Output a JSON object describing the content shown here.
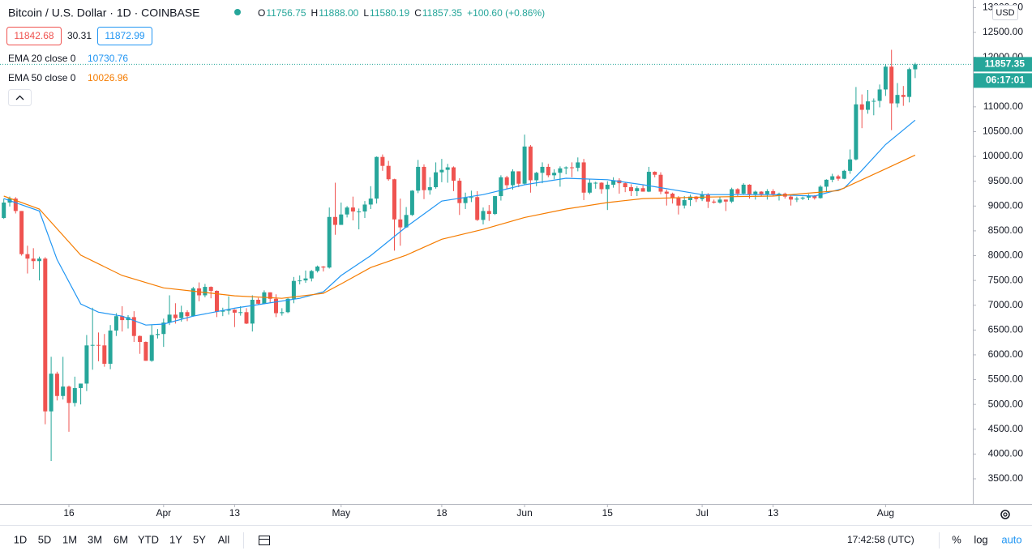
{
  "header": {
    "title": "Bitcoin / U.S. Dollar · 1D · COINBASE",
    "ohlc": [
      {
        "label": "O",
        "value": "11756.75"
      },
      {
        "label": "H",
        "value": "11888.00"
      },
      {
        "label": "L",
        "value": "11580.19"
      },
      {
        "label": "C",
        "value": "11857.35"
      }
    ],
    "change": "+100.60 (+0.86%)",
    "bid": "11842.68",
    "spread": "30.31",
    "ask": "11872.99"
  },
  "footer": {
    "ranges": [
      "1D",
      "5D",
      "1M",
      "3M",
      "6M",
      "YTD",
      "1Y",
      "5Y",
      "All"
    ],
    "clock": "17:42:58 (UTC)",
    "options": [
      "%",
      "log",
      "auto"
    ]
  },
  "chart_data": {
    "type": "candlestick",
    "currency": "USD",
    "countdown": "06:17:01",
    "up_color": "#26a69a",
    "down_color": "#ef5350",
    "ylim": [
      3026,
      13154
    ],
    "yticks": [
      {
        "value": 3500,
        "label": "3500.00"
      },
      {
        "value": 4000,
        "label": "4000.00"
      },
      {
        "value": 4500,
        "label": "4500.00"
      },
      {
        "value": 5000,
        "label": "5000.00"
      },
      {
        "value": 5500,
        "label": "5500.00"
      },
      {
        "value": 6000,
        "label": "6000.00"
      },
      {
        "value": 6500,
        "label": "6500.00"
      },
      {
        "value": 7000,
        "label": "7000.00"
      },
      {
        "value": 7500,
        "label": "7500.00"
      },
      {
        "value": 8000,
        "label": "8000.00"
      },
      {
        "value": 8500,
        "label": "8500.00"
      },
      {
        "value": 9000,
        "label": "9000.00"
      },
      {
        "value": 9500,
        "label": "9500.00"
      },
      {
        "value": 10000,
        "label": "10000.00"
      },
      {
        "value": 10500,
        "label": "10500.00"
      },
      {
        "value": 11000,
        "label": "11000.00"
      },
      {
        "value": 11500,
        "label": "11500.00"
      },
      {
        "value": 12000,
        "label": "12000.00"
      },
      {
        "value": 12500,
        "label": "12500.00"
      },
      {
        "value": 13000,
        "label": "13000.00"
      }
    ],
    "xticks": [
      {
        "value": "Mar 16",
        "label": "16"
      },
      {
        "value": "Apr 1",
        "label": "Apr"
      },
      {
        "value": "Apr 13",
        "label": "13"
      },
      {
        "value": "May 1",
        "label": "May"
      },
      {
        "value": "May 18",
        "label": "18"
      },
      {
        "value": "Jun 1",
        "label": "Jun"
      },
      {
        "value": "Jun 15",
        "label": "15"
      },
      {
        "value": "Jul 1",
        "label": "Jul"
      },
      {
        "value": "Jul 13",
        "label": "13"
      },
      {
        "value": "Aug 1",
        "label": "Aug"
      }
    ],
    "grid": false,
    "categories": [
      "Mar 5",
      "Mar 6",
      "Mar 7",
      "Mar 8",
      "Mar 9",
      "Mar 10",
      "Mar 11",
      "Mar 12",
      "Mar 13",
      "Mar 14",
      "Mar 15",
      "Mar 16",
      "Mar 17",
      "Mar 18",
      "Mar 19",
      "Mar 20",
      "Mar 21",
      "Mar 22",
      "Mar 23",
      "Mar 24",
      "Mar 25",
      "Mar 26",
      "Mar 27",
      "Mar 28",
      "Mar 29",
      "Mar 30",
      "Mar 31",
      "Apr 1",
      "Apr 2",
      "Apr 3",
      "Apr 4",
      "Apr 5",
      "Apr 6",
      "Apr 7",
      "Apr 8",
      "Apr 9",
      "Apr 10",
      "Apr 11",
      "Apr 12",
      "Apr 13",
      "Apr 14",
      "Apr 15",
      "Apr 16",
      "Apr 17",
      "Apr 18",
      "Apr 19",
      "Apr 20",
      "Apr 21",
      "Apr 22",
      "Apr 23",
      "Apr 24",
      "Apr 25",
      "Apr 26",
      "Apr 27",
      "Apr 28",
      "Apr 29",
      "Apr 30",
      "May 1",
      "May 2",
      "May 3",
      "May 4",
      "May 5",
      "May 6",
      "May 7",
      "May 8",
      "May 9",
      "May 10",
      "May 11",
      "May 12",
      "May 13",
      "May 14",
      "May 15",
      "May 16",
      "May 17",
      "May 18",
      "May 19",
      "May 20",
      "May 21",
      "May 22",
      "May 23",
      "May 24",
      "May 25",
      "May 26",
      "May 27",
      "May 28",
      "May 29",
      "May 30",
      "May 31",
      "Jun 1",
      "Jun 2",
      "Jun 3",
      "Jun 4",
      "Jun 5",
      "Jun 6",
      "Jun 7",
      "Jun 8",
      "Jun 9",
      "Jun 10",
      "Jun 11",
      "Jun 12",
      "Jun 13",
      "Jun 14",
      "Jun 15",
      "Jun 16",
      "Jun 17",
      "Jun 18",
      "Jun 19",
      "Jun 20",
      "Jun 21",
      "Jun 22",
      "Jun 23",
      "Jun 24",
      "Jun 25",
      "Jun 26",
      "Jun 27",
      "Jun 28",
      "Jun 29",
      "Jun 30",
      "Jul 1",
      "Jul 2",
      "Jul 3",
      "Jul 4",
      "Jul 5",
      "Jul 6",
      "Jul 7",
      "Jul 8",
      "Jul 9",
      "Jul 10",
      "Jul 11",
      "Jul 12",
      "Jul 13",
      "Jul 14",
      "Jul 15",
      "Jul 16",
      "Jul 17",
      "Jul 18",
      "Jul 19",
      "Jul 20",
      "Jul 21",
      "Jul 22",
      "Jul 23",
      "Jul 24",
      "Jul 25",
      "Jul 26",
      "Jul 27",
      "Jul 28",
      "Jul 29",
      "Jul 30",
      "Jul 31",
      "Aug 1",
      "Aug 2",
      "Aug 3",
      "Aug 4",
      "Aug 5",
      "Aug 6"
    ],
    "values": [
      [
        8760,
        9150,
        8740,
        9070
      ],
      [
        9070,
        9190,
        8990,
        9150
      ],
      [
        9150,
        9180,
        8850,
        8900
      ],
      [
        8900,
        8900,
        8000,
        8030
      ],
      [
        8030,
        8200,
        7640,
        7940
      ],
      [
        7940,
        8150,
        7730,
        7890
      ],
      [
        7890,
        7980,
        7500,
        7940
      ],
      [
        7940,
        7970,
        4600,
        4860
      ],
      [
        4860,
        5960,
        3860,
        5620
      ],
      [
        5620,
        5660,
        5080,
        5170
      ],
      [
        5170,
        5960,
        5100,
        5360
      ],
      [
        5360,
        5380,
        4450,
        5030
      ],
      [
        5030,
        5560,
        4960,
        5330
      ],
      [
        5330,
        5420,
        5000,
        5420
      ],
      [
        5420,
        6400,
        5270,
        6190
      ],
      [
        6190,
        6950,
        5700,
        6200
      ],
      [
        6200,
        6450,
        5870,
        6190
      ],
      [
        6190,
        6420,
        5760,
        5820
      ],
      [
        5820,
        6600,
        5710,
        6490
      ],
      [
        6490,
        6840,
        6380,
        6780
      ],
      [
        6780,
        6980,
        6470,
        6700
      ],
      [
        6700,
        6800,
        6530,
        6760
      ],
      [
        6760,
        6880,
        6260,
        6380
      ],
      [
        6380,
        6390,
        6020,
        6260
      ],
      [
        6260,
        6270,
        5880,
        5880
      ],
      [
        5880,
        6600,
        5860,
        6400
      ],
      [
        6400,
        6520,
        6330,
        6420
      ],
      [
        6420,
        6730,
        6160,
        6650
      ],
      [
        6650,
        7200,
        6600,
        6810
      ],
      [
        6810,
        7040,
        6630,
        6740
      ],
      [
        6740,
        6990,
        6670,
        6860
      ],
      [
        6860,
        6900,
        6680,
        6780
      ],
      [
        6780,
        7370,
        6770,
        7340
      ],
      [
        7340,
        7460,
        7080,
        7200
      ],
      [
        7200,
        7430,
        7160,
        7370
      ],
      [
        7370,
        7380,
        7140,
        7290
      ],
      [
        7290,
        7300,
        6760,
        6870
      ],
      [
        6870,
        6950,
        6780,
        6890
      ],
      [
        6890,
        7180,
        6810,
        6910
      ],
      [
        6910,
        6920,
        6560,
        6850
      ],
      [
        6850,
        6980,
        6790,
        6860
      ],
      [
        6860,
        6940,
        6620,
        6630
      ],
      [
        6630,
        7200,
        6470,
        7110
      ],
      [
        7110,
        7150,
        7010,
        7030
      ],
      [
        7030,
        7300,
        7020,
        7260
      ],
      [
        7260,
        7260,
        7050,
        7130
      ],
      [
        7130,
        7220,
        6760,
        6840
      ],
      [
        6840,
        6940,
        6790,
        6860
      ],
      [
        6860,
        7150,
        6840,
        7130
      ],
      [
        7130,
        7570,
        7040,
        7490
      ],
      [
        7490,
        7600,
        7420,
        7500
      ],
      [
        7500,
        7700,
        7450,
        7540
      ],
      [
        7540,
        7710,
        7480,
        7690
      ],
      [
        7690,
        7800,
        7660,
        7780
      ],
      [
        7780,
        7790,
        7680,
        7760
      ],
      [
        7760,
        8970,
        7740,
        8780
      ],
      [
        8780,
        9470,
        8420,
        8620
      ],
      [
        8620,
        9070,
        8620,
        8830
      ],
      [
        8830,
        9000,
        8770,
        8970
      ],
      [
        8970,
        9190,
        8710,
        8890
      ],
      [
        8890,
        8950,
        8530,
        8890
      ],
      [
        8890,
        9100,
        8760,
        9030
      ],
      [
        9030,
        9400,
        8940,
        9150
      ],
      [
        9150,
        10000,
        9050,
        9990
      ],
      [
        9990,
        10040,
        9710,
        9810
      ],
      [
        9810,
        9910,
        9510,
        9540
      ],
      [
        9540,
        9550,
        8100,
        8730
      ],
      [
        8730,
        9150,
        8200,
        8570
      ],
      [
        8570,
        8980,
        8560,
        8820
      ],
      [
        8820,
        9320,
        8800,
        9310
      ],
      [
        9310,
        9930,
        9260,
        9790
      ],
      [
        9790,
        9840,
        9140,
        9320
      ],
      [
        9320,
        9580,
        9230,
        9380
      ],
      [
        9380,
        9880,
        9350,
        9680
      ],
      [
        9680,
        9950,
        9480,
        9730
      ],
      [
        9730,
        9850,
        9470,
        9780
      ],
      [
        9780,
        9800,
        9300,
        9510
      ],
      [
        9510,
        9560,
        8820,
        9060
      ],
      [
        9060,
        9270,
        8940,
        9170
      ],
      [
        9170,
        9310,
        9080,
        9180
      ],
      [
        9180,
        9300,
        8700,
        8720
      ],
      [
        8720,
        8970,
        8630,
        8900
      ],
      [
        8900,
        9020,
        8700,
        8840
      ],
      [
        8840,
        9200,
        8820,
        9200
      ],
      [
        9200,
        9620,
        9110,
        9580
      ],
      [
        9580,
        9610,
        9340,
        9420
      ],
      [
        9420,
        9740,
        9330,
        9700
      ],
      [
        9700,
        9700,
        9380,
        9450
      ],
      [
        9450,
        10440,
        9420,
        10200
      ],
      [
        10200,
        10230,
        9270,
        9520
      ],
      [
        9520,
        9690,
        9400,
        9670
      ],
      [
        9670,
        9880,
        9460,
        9790
      ],
      [
        9790,
        9850,
        9580,
        9620
      ],
      [
        9620,
        9740,
        9540,
        9670
      ],
      [
        9670,
        9800,
        9390,
        9760
      ],
      [
        9760,
        9800,
        9640,
        9780
      ],
      [
        9780,
        9880,
        9580,
        9770
      ],
      [
        9770,
        9980,
        9700,
        9880
      ],
      [
        9880,
        9950,
        9120,
        9270
      ],
      [
        9270,
        9550,
        9240,
        9470
      ],
      [
        9470,
        9490,
        9350,
        9470
      ],
      [
        9470,
        9480,
        9250,
        9340
      ],
      [
        9340,
        9500,
        8920,
        9430
      ],
      [
        9430,
        9580,
        9370,
        9520
      ],
      [
        9520,
        9560,
        9250,
        9460
      ],
      [
        9460,
        9480,
        9280,
        9380
      ],
      [
        9380,
        9440,
        9200,
        9300
      ],
      [
        9300,
        9400,
        9200,
        9360
      ],
      [
        9360,
        9420,
        9290,
        9290
      ],
      [
        9290,
        9790,
        9280,
        9690
      ],
      [
        9690,
        9700,
        9580,
        9630
      ],
      [
        9630,
        9680,
        9240,
        9290
      ],
      [
        9290,
        9330,
        9010,
        9250
      ],
      [
        9250,
        9270,
        9050,
        9160
      ],
      [
        9160,
        9200,
        8830,
        9010
      ],
      [
        9010,
        9200,
        8950,
        9120
      ],
      [
        9120,
        9230,
        9000,
        9190
      ],
      [
        9190,
        9200,
        9080,
        9140
      ],
      [
        9140,
        9300,
        9100,
        9230
      ],
      [
        9230,
        9260,
        8960,
        9090
      ],
      [
        9090,
        9130,
        9050,
        9070
      ],
      [
        9070,
        9190,
        9050,
        9130
      ],
      [
        9130,
        9130,
        8900,
        9090
      ],
      [
        9090,
        9370,
        9060,
        9340
      ],
      [
        9340,
        9360,
        9200,
        9250
      ],
      [
        9250,
        9460,
        9240,
        9430
      ],
      [
        9430,
        9440,
        9150,
        9240
      ],
      [
        9240,
        9310,
        9130,
        9290
      ],
      [
        9290,
        9300,
        9190,
        9240
      ],
      [
        9240,
        9340,
        9130,
        9300
      ],
      [
        9300,
        9340,
        9200,
        9240
      ],
      [
        9240,
        9270,
        9110,
        9250
      ],
      [
        9250,
        9270,
        9150,
        9190
      ],
      [
        9190,
        9210,
        9010,
        9130
      ],
      [
        9130,
        9190,
        9080,
        9150
      ],
      [
        9150,
        9190,
        9120,
        9170
      ],
      [
        9170,
        9240,
        9120,
        9210
      ],
      [
        9210,
        9220,
        9130,
        9160
      ],
      [
        9160,
        9420,
        9150,
        9390
      ],
      [
        9390,
        9540,
        9280,
        9530
      ],
      [
        9530,
        9650,
        9480,
        9600
      ],
      [
        9600,
        9630,
        9510,
        9550
      ],
      [
        9550,
        9730,
        9540,
        9710
      ],
      [
        9710,
        10140,
        9650,
        9940
      ],
      [
        9940,
        11400,
        9920,
        11050
      ],
      [
        11050,
        11250,
        10570,
        10940
      ],
      [
        10940,
        11340,
        10860,
        11110
      ],
      [
        11110,
        11170,
        10830,
        11120
      ],
      [
        11120,
        11450,
        10990,
        11350
      ],
      [
        11350,
        11860,
        11220,
        11810
      ],
      [
        11810,
        12150,
        10530,
        11070
      ],
      [
        11070,
        11480,
        10990,
        11240
      ],
      [
        11240,
        11420,
        11020,
        11200
      ],
      [
        11200,
        11790,
        11090,
        11760
      ],
      [
        11756.75,
        11888,
        11580.19,
        11857.35
      ]
    ],
    "lines": [
      {
        "name": "EMA 20 close 0",
        "color": "#2196f3",
        "x": [
          "Mar 5",
          "Mar 11",
          "Mar 14",
          "Mar 18",
          "Mar 21",
          "Mar 25",
          "Mar 29",
          "Apr 1",
          "Apr 6",
          "Apr 13",
          "Apr 18",
          "Apr 24",
          "Apr 28",
          "May 1",
          "May 6",
          "May 12",
          "May 18",
          "May 25",
          "Jun 1",
          "Jun 8",
          "Jun 15",
          "Jun 21",
          "Jul 1",
          "Jul 13",
          "Jul 20",
          "Jul 25",
          "Jul 28",
          "Aug 1",
          "Aug 6"
        ],
        "values": [
          9150,
          8900,
          7920,
          7025,
          6860,
          6780,
          6600,
          6620,
          6780,
          6940,
          7030,
          7140,
          7270,
          7600,
          8000,
          8580,
          9100,
          9230,
          9430,
          9560,
          9530,
          9430,
          9230,
          9230,
          9200,
          9360,
          9720,
          10240,
          10730.76
        ]
      },
      {
        "name": "EMA 50 close 0",
        "color": "#f57c00",
        "x": [
          "Mar 5",
          "Mar 11",
          "Mar 18",
          "Mar 25",
          "Apr 1",
          "Apr 13",
          "Apr 21",
          "Apr 28",
          "May 1",
          "May 6",
          "May 12",
          "May 18",
          "May 25",
          "Jun 1",
          "Jun 8",
          "Jun 15",
          "Jun 21",
          "Jul 1",
          "Jul 13",
          "Jul 24",
          "Aug 1",
          "Aug 6"
        ],
        "values": [
          9200,
          8940,
          8010,
          7600,
          7350,
          7190,
          7140,
          7240,
          7430,
          7760,
          8010,
          8330,
          8530,
          8770,
          8940,
          9070,
          9150,
          9180,
          9200,
          9310,
          9750,
          10026.96
        ]
      }
    ]
  }
}
